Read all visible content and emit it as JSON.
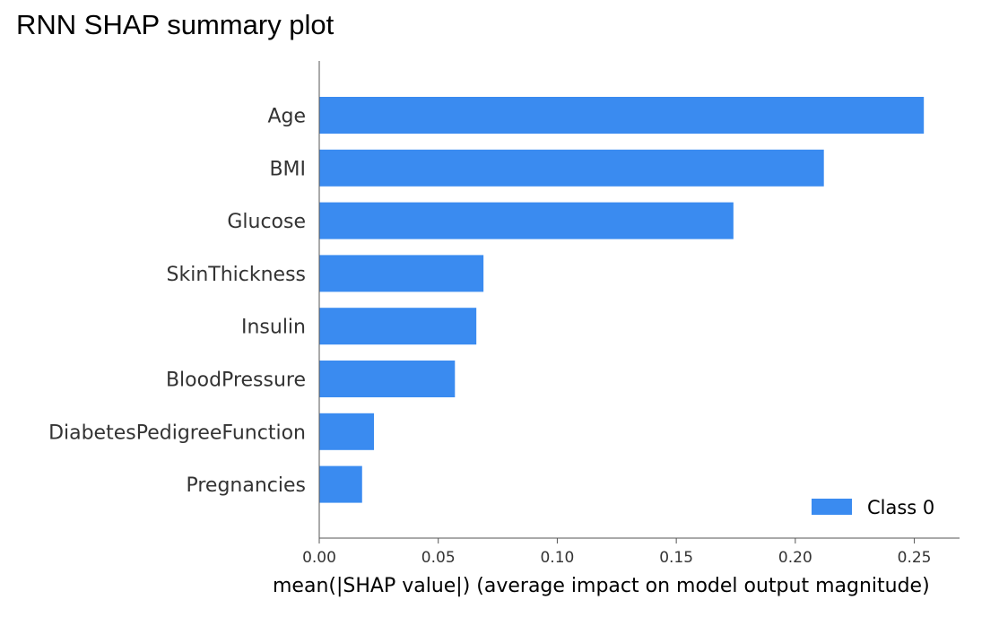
{
  "page": {
    "title": "RNN SHAP summary plot"
  },
  "chart_data": {
    "type": "bar",
    "orientation": "horizontal",
    "categories": [
      "Age",
      "BMI",
      "Glucose",
      "SkinThickness",
      "Insulin",
      "BloodPressure",
      "DiabetesPedigreeFunction",
      "Pregnancies"
    ],
    "series": [
      {
        "name": "Class 0",
        "color": "#3a8bf0",
        "values": [
          0.254,
          0.212,
          0.174,
          0.069,
          0.066,
          0.057,
          0.023,
          0.018
        ]
      }
    ],
    "xlabel": "mean(|SHAP value|) (average impact on model output magnitude)",
    "xlim": [
      0,
      0.269
    ],
    "xticks": [
      0.0,
      0.05,
      0.1,
      0.15,
      0.2,
      0.25
    ],
    "xtick_labels": [
      "0.00",
      "0.05",
      "0.10",
      "0.15",
      "0.20",
      "0.25"
    ],
    "legend": {
      "placement": "bottom-right",
      "entries": [
        "Class 0"
      ]
    },
    "grid": false
  }
}
